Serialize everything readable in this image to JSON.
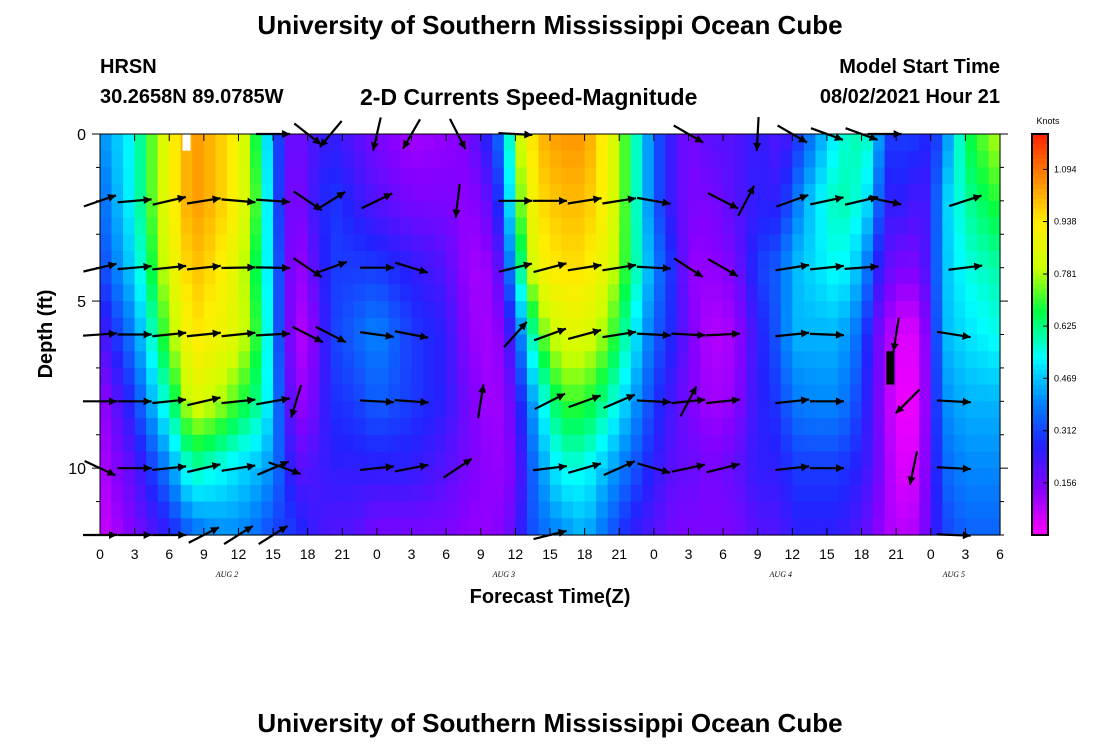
{
  "header": {
    "title": "University of Southern Mississippi Ocean Cube",
    "station": "HRSN",
    "coords": "30.2658N  89.0785W",
    "plot_title": "2-D Currents Speed-Magnitude",
    "model_start_label": "Model Start Time",
    "model_start_value": "08/02/2021 Hour 21"
  },
  "footer": {
    "title": "University of Southern Mississippi Ocean Cube"
  },
  "chart_data": {
    "type": "heatmap",
    "title": "2-D Currents Speed-Magnitude",
    "xlabel": "Forecast Time(Z)",
    "ylabel": "Depth (ft)",
    "x_tick_labels": [
      "0",
      "3",
      "6",
      "9",
      "12",
      "15",
      "18",
      "21",
      "0",
      "3",
      "6",
      "9",
      "12",
      "15",
      "18",
      "21",
      "0",
      "3",
      "6",
      "9",
      "12",
      "15",
      "18",
      "21",
      "0",
      "3",
      "6"
    ],
    "x_range_hours": [
      0,
      78
    ],
    "day_labels": [
      {
        "label": "AUG  2",
        "hour": 11
      },
      {
        "label": "AUG  3",
        "hour": 35
      },
      {
        "label": "AUG  4",
        "hour": 59
      },
      {
        "label": "AUG  5",
        "hour": 74
      }
    ],
    "y_tick_labels": [
      "0",
      "5",
      "10"
    ],
    "y_ticks": [
      0,
      5,
      10
    ],
    "y_range": [
      0,
      12
    ],
    "y_inverted": true,
    "colorbar": {
      "unit": "Knots",
      "range": [
        0,
        1.2
      ],
      "labels": [
        "1.094",
        "0.938",
        "0.781",
        "0.625",
        "0.469",
        "0.312",
        "0.156"
      ],
      "label_values": [
        1.094,
        0.938,
        0.781,
        0.625,
        0.469,
        0.312,
        0.156
      ],
      "colors": [
        "#ff00ff",
        "#8800ff",
        "#2222ff",
        "#0088ff",
        "#00ffff",
        "#00ff44",
        "#ccff00",
        "#ffee00",
        "#ff8800",
        "#ff2200"
      ]
    },
    "speed_keyframes_hours": [
      0,
      3,
      6,
      8,
      10,
      12,
      14,
      15,
      16,
      17,
      18,
      20,
      22,
      24,
      27,
      30,
      32,
      34,
      35,
      36,
      37,
      38,
      40,
      42,
      44,
      46,
      48,
      50,
      51,
      53,
      55,
      57,
      59,
      60,
      62,
      64,
      66,
      67,
      68,
      69,
      70,
      71,
      72,
      73,
      75,
      78
    ],
    "speed_keyframe_depths": [
      0,
      2,
      4,
      6,
      8,
      10,
      12
    ],
    "speed_keyframes": [
      [
        0.4,
        0.35,
        0.3,
        0.2,
        0.1,
        0.08,
        0.05
      ],
      [
        0.55,
        0.55,
        0.5,
        0.4,
        0.3,
        0.2,
        0.15
      ],
      [
        0.9,
        0.9,
        0.85,
        0.75,
        0.6,
        0.4,
        0.25
      ],
      [
        1.05,
        1.05,
        1.0,
        0.95,
        0.85,
        0.6,
        0.35
      ],
      [
        1.0,
        1.0,
        0.95,
        0.9,
        0.8,
        0.55,
        0.4
      ],
      [
        0.9,
        0.9,
        0.85,
        0.85,
        0.7,
        0.5,
        0.4
      ],
      [
        0.6,
        0.65,
        0.6,
        0.65,
        0.6,
        0.45,
        0.35
      ],
      [
        0.4,
        0.4,
        0.45,
        0.45,
        0.45,
        0.4,
        0.3
      ],
      [
        0.2,
        0.2,
        0.2,
        0.2,
        0.25,
        0.3,
        0.3
      ],
      [
        0.15,
        0.12,
        0.1,
        0.1,
        0.12,
        0.2,
        0.3
      ],
      [
        0.2,
        0.2,
        0.15,
        0.08,
        0.12,
        0.2,
        0.25
      ],
      [
        0.25,
        0.3,
        0.3,
        0.3,
        0.28,
        0.25,
        0.2
      ],
      [
        0.2,
        0.25,
        0.3,
        0.35,
        0.3,
        0.25,
        0.2
      ],
      [
        0.15,
        0.2,
        0.3,
        0.4,
        0.35,
        0.25,
        0.15
      ],
      [
        0.1,
        0.15,
        0.25,
        0.3,
        0.3,
        0.25,
        0.15
      ],
      [
        0.12,
        0.15,
        0.2,
        0.25,
        0.25,
        0.2,
        0.15
      ],
      [
        0.15,
        0.12,
        0.1,
        0.12,
        0.15,
        0.15,
        0.12
      ],
      [
        0.3,
        0.2,
        0.12,
        0.1,
        0.1,
        0.12,
        0.12
      ],
      [
        0.4,
        0.35,
        0.25,
        0.15,
        0.12,
        0.12,
        0.15
      ],
      [
        0.75,
        0.65,
        0.5,
        0.3,
        0.2,
        0.15,
        0.2
      ],
      [
        0.9,
        0.85,
        0.75,
        0.5,
        0.35,
        0.3,
        0.3
      ],
      [
        1.0,
        0.95,
        0.9,
        0.7,
        0.5,
        0.4,
        0.35
      ],
      [
        1.05,
        1.0,
        0.95,
        0.85,
        0.7,
        0.55,
        0.4
      ],
      [
        1.05,
        1.0,
        0.95,
        0.85,
        0.7,
        0.55,
        0.45
      ],
      [
        0.9,
        0.9,
        0.85,
        0.75,
        0.6,
        0.45,
        0.35
      ],
      [
        0.65,
        0.65,
        0.65,
        0.55,
        0.45,
        0.35,
        0.25
      ],
      [
        0.35,
        0.35,
        0.4,
        0.35,
        0.3,
        0.25,
        0.2
      ],
      [
        0.2,
        0.2,
        0.25,
        0.25,
        0.2,
        0.18,
        0.15
      ],
      [
        0.15,
        0.15,
        0.12,
        0.15,
        0.15,
        0.18,
        0.15
      ],
      [
        0.2,
        0.15,
        0.12,
        0.08,
        0.1,
        0.15,
        0.15
      ],
      [
        0.2,
        0.2,
        0.15,
        0.1,
        0.12,
        0.18,
        0.15
      ],
      [
        0.25,
        0.25,
        0.3,
        0.25,
        0.25,
        0.25,
        0.2
      ],
      [
        0.2,
        0.25,
        0.35,
        0.35,
        0.3,
        0.25,
        0.2
      ],
      [
        0.25,
        0.35,
        0.45,
        0.45,
        0.38,
        0.3,
        0.25
      ],
      [
        0.4,
        0.5,
        0.5,
        0.45,
        0.4,
        0.3,
        0.25
      ],
      [
        0.55,
        0.6,
        0.55,
        0.45,
        0.4,
        0.3,
        0.25
      ],
      [
        0.6,
        0.55,
        0.45,
        0.35,
        0.3,
        0.25,
        0.2
      ],
      [
        0.55,
        0.45,
        0.3,
        0.2,
        0.2,
        0.2,
        0.15
      ],
      [
        0.3,
        0.25,
        0.2,
        0.12,
        0.1,
        0.12,
        0.1
      ],
      [
        0.3,
        0.25,
        0.15,
        0.05,
        0.03,
        0.05,
        0.08
      ],
      [
        0.3,
        0.25,
        0.15,
        0.03,
        0.01,
        0.03,
        0.08
      ],
      [
        0.3,
        0.2,
        0.15,
        0.05,
        0.03,
        0.06,
        0.1
      ],
      [
        0.25,
        0.25,
        0.25,
        0.2,
        0.2,
        0.2,
        0.2
      ],
      [
        0.35,
        0.45,
        0.45,
        0.45,
        0.4,
        0.35,
        0.3
      ],
      [
        0.65,
        0.6,
        0.55,
        0.5,
        0.45,
        0.4,
        0.35
      ],
      [
        0.8,
        0.7,
        0.6,
        0.55,
        0.45,
        0.4,
        0.35
      ]
    ],
    "vectors": [
      [
        [
          0,
          2,
          19
        ],
        [
          0,
          4,
          13
        ],
        [
          0,
          6,
          4
        ],
        [
          0,
          8,
          0
        ],
        [
          0,
          10,
          -25
        ],
        [
          0,
          12,
          0
        ]
      ],
      [
        [
          3,
          2,
          5
        ],
        [
          3,
          4,
          5
        ],
        [
          3,
          6,
          0
        ],
        [
          3,
          8,
          0
        ],
        [
          3,
          10,
          0
        ],
        [
          3,
          12,
          0
        ]
      ],
      [
        [
          6,
          2,
          13
        ],
        [
          6,
          4,
          6
        ],
        [
          6,
          6,
          6
        ],
        [
          6,
          8,
          6
        ],
        [
          6,
          10,
          6
        ],
        [
          6,
          12,
          0
        ]
      ],
      [
        [
          9,
          2,
          9
        ],
        [
          9,
          4,
          6
        ],
        [
          9,
          6,
          6
        ],
        [
          9,
          8,
          13
        ],
        [
          9,
          10,
          13
        ],
        [
          9,
          12,
          27
        ]
      ],
      [
        [
          12,
          2,
          -5
        ],
        [
          12,
          4,
          1
        ],
        [
          12,
          6,
          6
        ],
        [
          12,
          8,
          6
        ],
        [
          12,
          10,
          9
        ],
        [
          12,
          12,
          32
        ]
      ],
      [
        [
          15,
          0,
          0
        ],
        [
          15,
          2,
          -4
        ],
        [
          15,
          4,
          -1
        ],
        [
          15,
          6,
          3
        ],
        [
          15,
          8,
          10
        ],
        [
          15,
          10,
          23
        ],
        [
          15,
          12,
          32
        ]
      ],
      [
        [
          16,
          10,
          -20
        ],
        [
          17,
          8,
          -107
        ]
      ],
      [
        [
          18,
          0,
          -38
        ],
        [
          18,
          2,
          -34
        ],
        [
          18,
          4,
          -34
        ],
        [
          18,
          6,
          -27
        ]
      ],
      [
        [
          20,
          0,
          -130
        ],
        [
          20,
          2,
          32
        ],
        [
          20,
          4,
          20
        ],
        [
          20,
          6,
          -27
        ]
      ],
      [
        [
          24,
          0,
          -103
        ],
        [
          24,
          2,
          26
        ],
        [
          24,
          4,
          0
        ],
        [
          24,
          6,
          -8
        ],
        [
          24,
          8,
          -3
        ],
        [
          24,
          10,
          6
        ]
      ],
      [
        [
          27,
          0,
          -120
        ],
        [
          27,
          4,
          -17
        ],
        [
          27,
          6,
          -11
        ],
        [
          27,
          8,
          -4
        ],
        [
          27,
          10,
          11
        ]
      ],
      [
        [
          31,
          0,
          -63
        ],
        [
          31,
          2,
          -97
        ],
        [
          31,
          10,
          34
        ],
        [
          33,
          8,
          81
        ],
        [
          36,
          6,
          48
        ],
        [
          36,
          4,
          14
        ],
        [
          36,
          2,
          0
        ],
        [
          36,
          0,
          -3
        ]
      ],
      [
        [
          39,
          2,
          0
        ],
        [
          39,
          4,
          15
        ],
        [
          39,
          6,
          20
        ],
        [
          39,
          8,
          27
        ],
        [
          39,
          10,
          7
        ],
        [
          39,
          12,
          14
        ]
      ],
      [
        [
          42,
          2,
          9
        ],
        [
          42,
          4,
          9
        ],
        [
          42,
          6,
          15
        ],
        [
          42,
          8,
          20
        ],
        [
          42,
          10,
          16
        ]
      ],
      [
        [
          45,
          2,
          9
        ],
        [
          45,
          4,
          9
        ],
        [
          45,
          6,
          9
        ],
        [
          45,
          8,
          23
        ],
        [
          45,
          10,
          24
        ]
      ],
      [
        [
          48,
          2,
          -10
        ],
        [
          48,
          4,
          -3
        ],
        [
          48,
          6,
          -3
        ],
        [
          48,
          8,
          -3
        ],
        [
          48,
          10,
          -16
        ]
      ],
      [
        [
          51,
          0,
          -30
        ],
        [
          51,
          4,
          -33
        ],
        [
          51,
          6,
          -3
        ],
        [
          51,
          8,
          6
        ],
        [
          51,
          10,
          12
        ],
        [
          51,
          8,
          62
        ]
      ],
      [
        [
          54,
          2,
          -27
        ],
        [
          54,
          4,
          -30
        ],
        [
          54,
          6,
          3
        ],
        [
          54,
          8,
          6
        ],
        [
          54,
          10,
          14
        ],
        [
          56,
          2,
          62
        ],
        [
          57,
          0,
          -93
        ]
      ],
      [
        [
          60,
          0,
          -30
        ],
        [
          60,
          2,
          20
        ],
        [
          60,
          4,
          9
        ],
        [
          60,
          6,
          6
        ],
        [
          60,
          8,
          6
        ],
        [
          60,
          10,
          6
        ]
      ],
      [
        [
          63,
          0,
          -20
        ],
        [
          63,
          2,
          12
        ],
        [
          63,
          4,
          6
        ],
        [
          63,
          6,
          -2
        ],
        [
          63,
          8,
          0
        ],
        [
          63,
          10,
          0
        ]
      ],
      [
        [
          66,
          0,
          -20
        ],
        [
          66,
          2,
          13
        ],
        [
          66,
          4,
          4
        ]
      ],
      [
        [
          68,
          0,
          0
        ],
        [
          68,
          2,
          -12
        ],
        [
          69,
          6,
          -99
        ],
        [
          70,
          8,
          -135
        ],
        [
          70.5,
          10,
          -102
        ]
      ],
      [
        [
          74,
          6,
          -9
        ],
        [
          74,
          8,
          -3
        ],
        [
          74,
          10,
          -3
        ],
        [
          74,
          12,
          -2
        ]
      ],
      [
        [
          75,
          2,
          18
        ],
        [
          75,
          4,
          7
        ]
      ]
    ],
    "missing_marks": [
      {
        "hour": 7.5,
        "depth_range": [
          0,
          0.5
        ],
        "color": "#ffffff"
      },
      {
        "hour": 68.5,
        "depth_range": [
          6.5,
          7.5
        ],
        "color": "#000000"
      }
    ],
    "grid": false
  }
}
